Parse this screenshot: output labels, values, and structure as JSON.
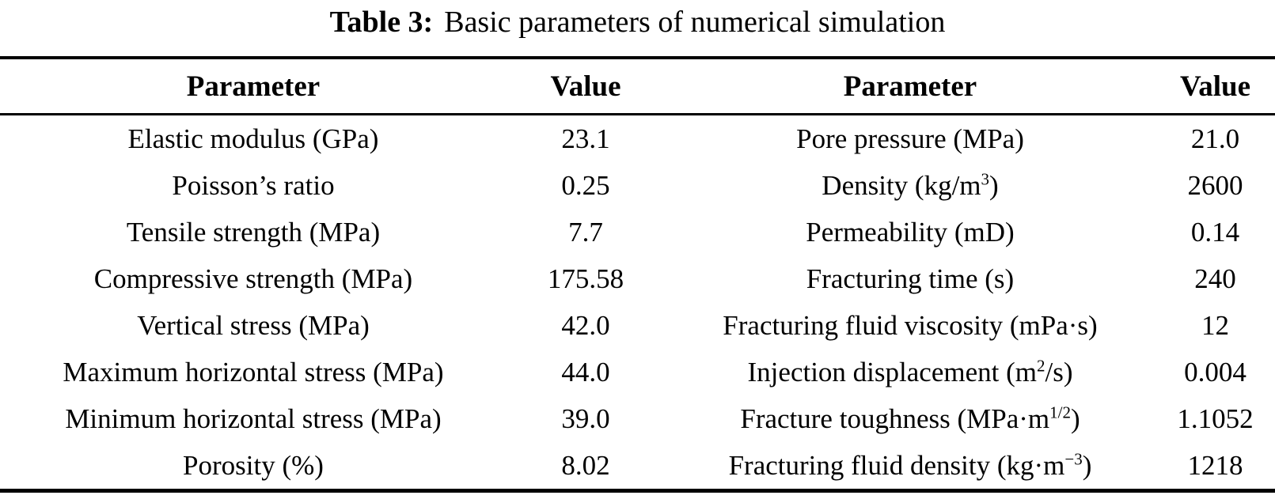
{
  "caption": {
    "number": "Table 3:",
    "text": "Basic parameters of numerical simulation"
  },
  "table": {
    "headers": {
      "param_left": "Parameter",
      "value_left": "Value",
      "param_right": "Parameter",
      "value_right": "Value"
    },
    "rows": [
      {
        "left": {
          "pre": "Elastic modulus (GPa)",
          "sup": "",
          "post": "",
          "value": "23.1"
        },
        "right": {
          "pre": "Pore pressure (MPa)",
          "sup": "",
          "post": "",
          "value": "21.0"
        }
      },
      {
        "left": {
          "pre": "Poisson’s ratio",
          "sup": "",
          "post": "",
          "value": "0.25"
        },
        "right": {
          "pre": "Density (kg/m",
          "sup": "3",
          "post": ")",
          "value": "2600"
        }
      },
      {
        "left": {
          "pre": "Tensile strength (MPa)",
          "sup": "",
          "post": "",
          "value": "7.7"
        },
        "right": {
          "pre": "Permeability (mD)",
          "sup": "",
          "post": "",
          "value": "0.14"
        }
      },
      {
        "left": {
          "pre": "Compressive strength (MPa)",
          "sup": "",
          "post": "",
          "value": "175.58"
        },
        "right": {
          "pre": "Fracturing time (s)",
          "sup": "",
          "post": "",
          "value": "240"
        }
      },
      {
        "left": {
          "pre": "Vertical stress (MPa)",
          "sup": "",
          "post": "",
          "value": "42.0"
        },
        "right": {
          "pre": "Fracturing fluid viscosity (mPa·s)",
          "sup": "",
          "post": "",
          "value": "12"
        }
      },
      {
        "left": {
          "pre": "Maximum horizontal stress (MPa)",
          "sup": "",
          "post": "",
          "value": "44.0"
        },
        "right": {
          "pre": "Injection displacement (m",
          "sup": "2",
          "post": "/s)",
          "value": "0.004"
        }
      },
      {
        "left": {
          "pre": "Minimum horizontal stress (MPa)",
          "sup": "",
          "post": "",
          "value": "39.0"
        },
        "right": {
          "pre": "Fracture toughness (MPa·m",
          "sup": "1/2",
          "post": ")",
          "value": "1.1052"
        }
      },
      {
        "left": {
          "pre": "Porosity (%)",
          "sup": "",
          "post": "",
          "value": "8.02"
        },
        "right": {
          "pre": "Fracturing fluid density (kg·m",
          "sup": "−3",
          "post": ")",
          "value": "1218"
        }
      }
    ],
    "colors": {
      "text": "#000000",
      "background": "#ffffff",
      "rule": "#000000"
    }
  }
}
